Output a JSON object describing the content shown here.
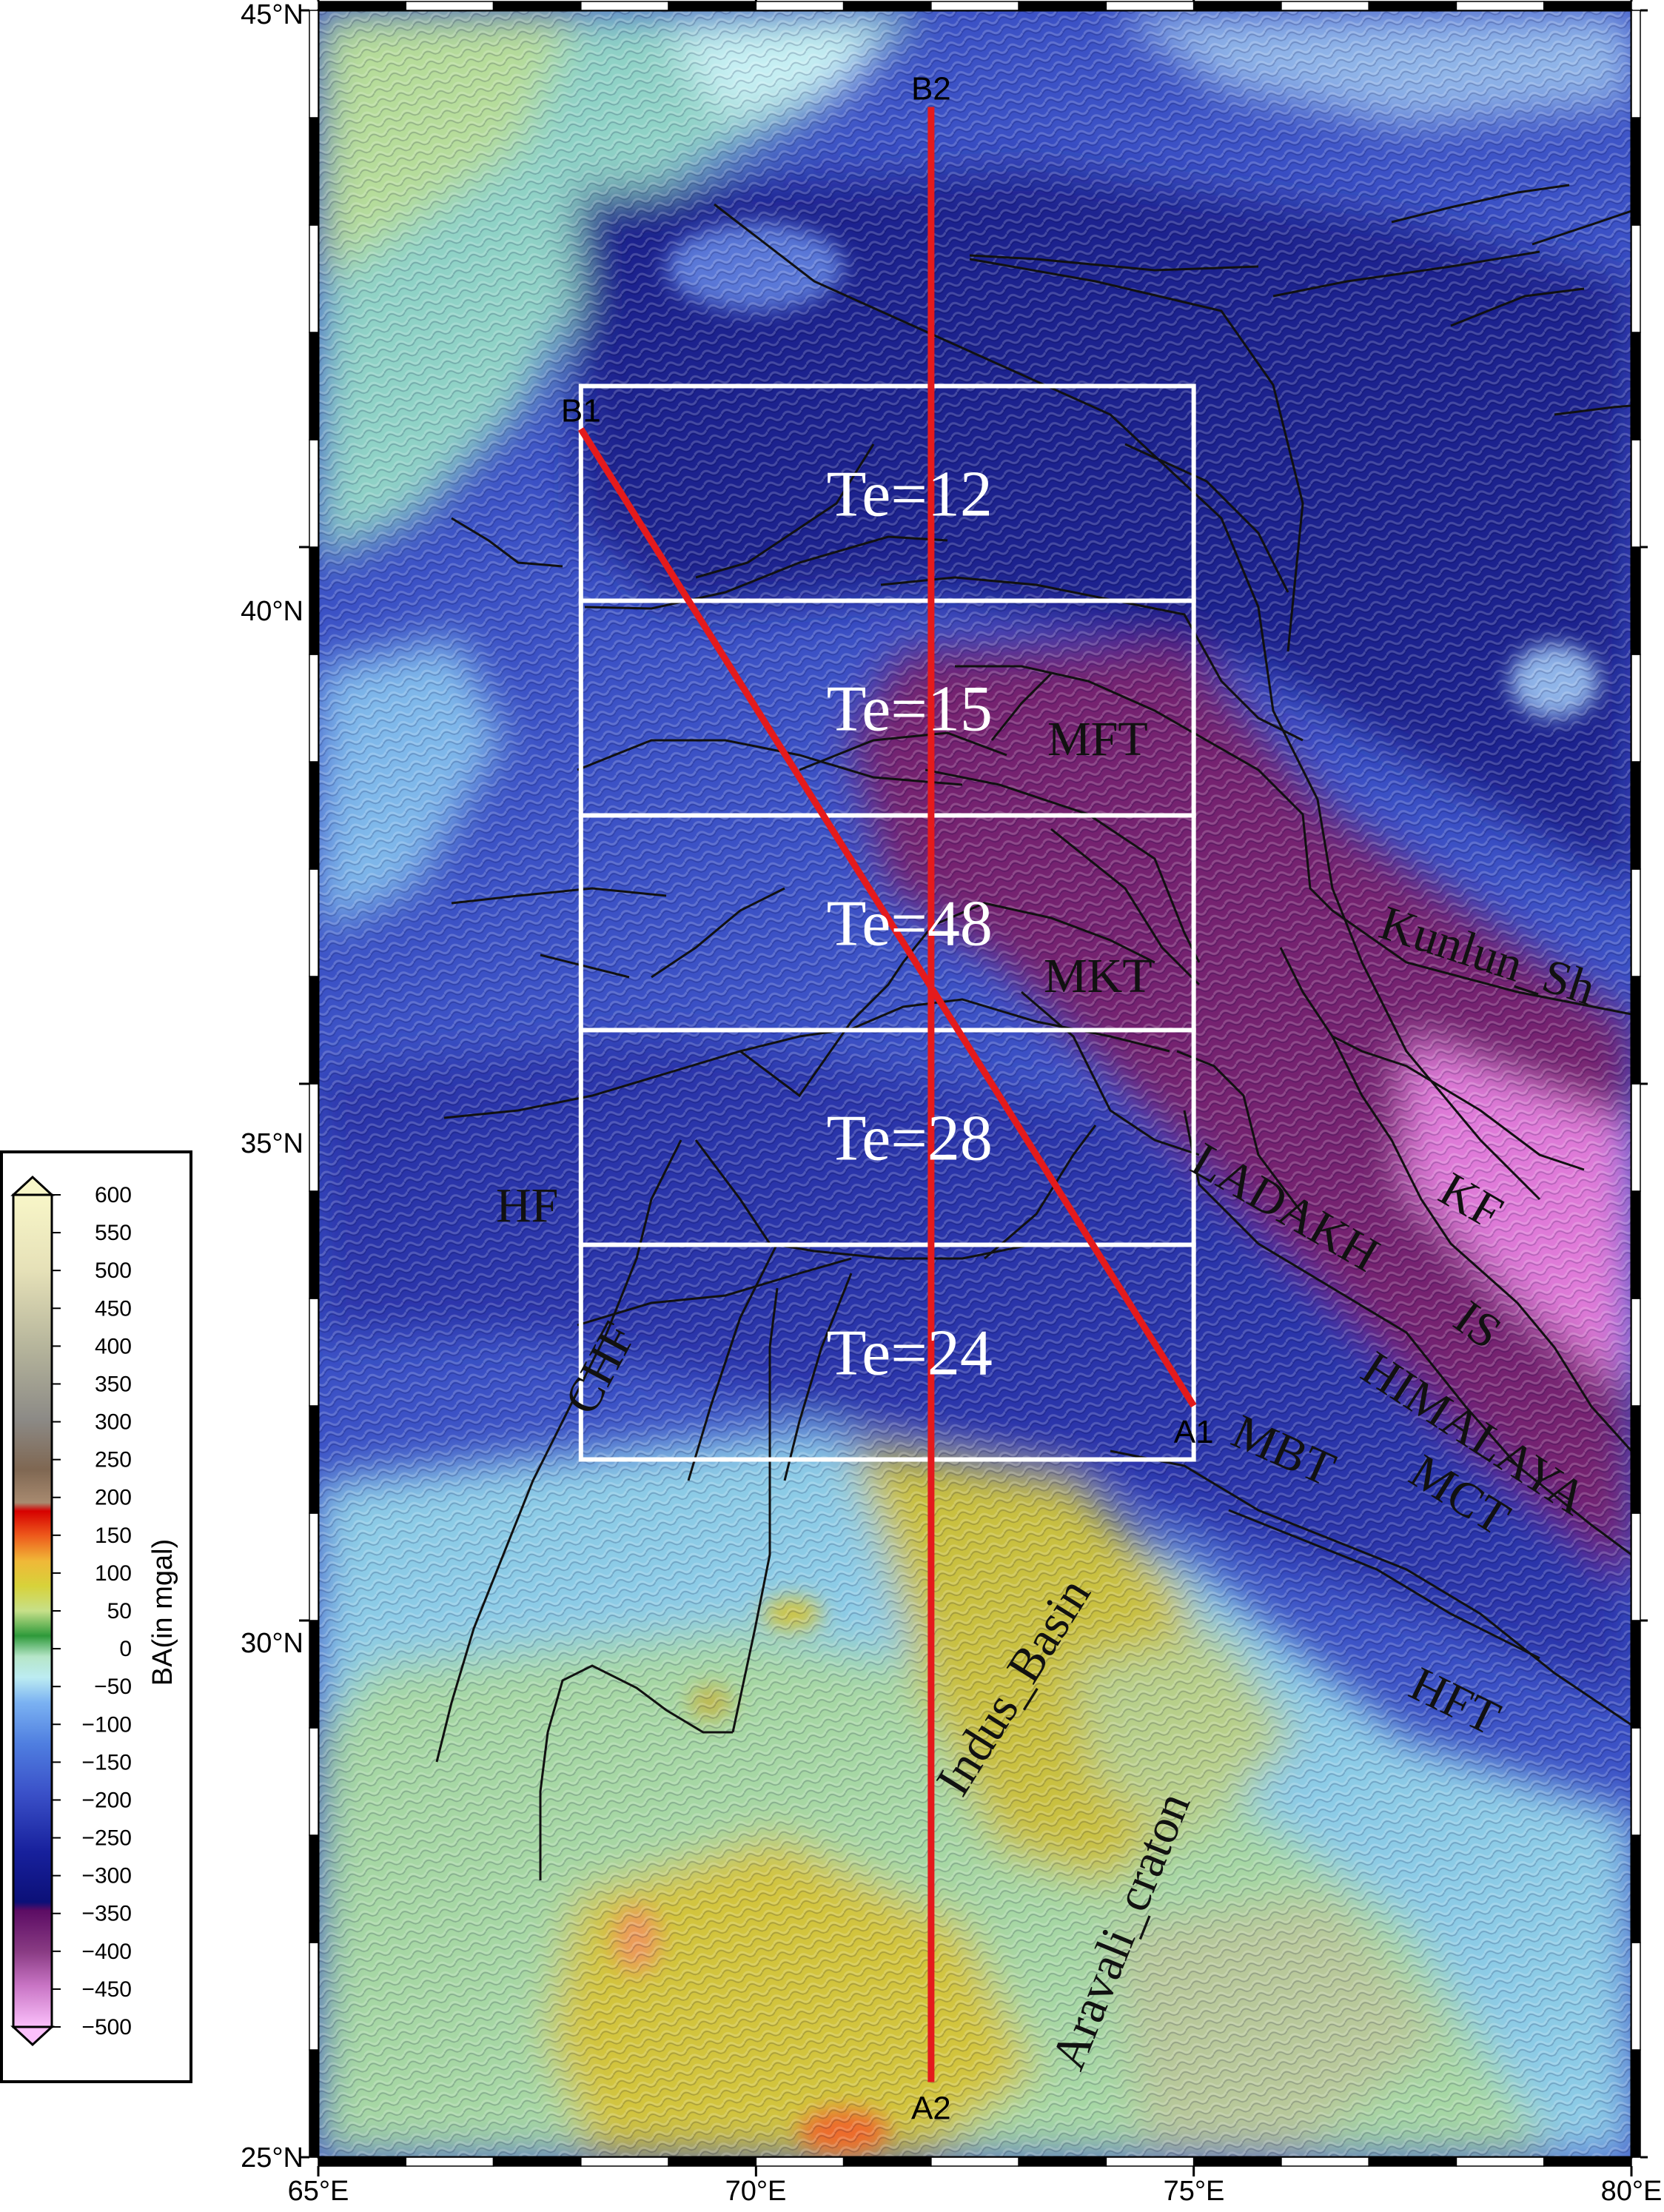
{
  "map": {
    "lon_range": [
      65,
      80
    ],
    "lat_range": [
      25,
      45
    ],
    "x_ticks": [
      "65°E",
      "70°E",
      "75°E",
      "80°E"
    ],
    "y_ticks": [
      "25°N",
      "30°N",
      "35°N",
      "40°N",
      "45°N"
    ],
    "profiles": [
      {
        "name": "profile-a2-b2",
        "start_label": "A2",
        "end_label": "B2",
        "start": [
          72.0,
          25.7
        ],
        "end": [
          72.0,
          44.1
        ],
        "color": "#e41a1c"
      },
      {
        "name": "profile-a1-b1",
        "start_label": "A1",
        "end_label": "B1",
        "start": [
          75.0,
          32.0
        ],
        "end": [
          68.0,
          41.1
        ],
        "color": "#e41a1c"
      }
    ],
    "te_labels": [
      "Te=12",
      "Te=15",
      "Te=48",
      "Te=28",
      "Te=24"
    ],
    "te_boxes": [
      {
        "lat_top": 41.5,
        "lat_bottom": 39.5
      },
      {
        "lat_top": 39.5,
        "lat_bottom": 37.5
      },
      {
        "lat_top": 37.5,
        "lat_bottom": 35.5
      },
      {
        "lat_top": 35.5,
        "lat_bottom": 33.5
      },
      {
        "lat_top": 33.5,
        "lat_bottom": 31.5
      }
    ],
    "box_lon_range": [
      68.0,
      75.0
    ],
    "fault_labels": {
      "mft": "MFT",
      "mkt": "MKT",
      "hf": "HF",
      "cht": "CHF",
      "ladakh": "LADAKH",
      "kf": "KF",
      "is": "IS",
      "himalaya": "HIMALAYA",
      "mbt": "MBT",
      "mct": "MCT",
      "kunlun": "Kunlun_Sh",
      "hft": "HFT",
      "indus": "Indus_Basin",
      "aravali": "Aravali_craton"
    }
  },
  "colorbar": {
    "label": "BA(in mgal)",
    "ticks": [
      "600",
      "550",
      "500",
      "450",
      "400",
      "350",
      "300",
      "250",
      "200",
      "150",
      "100",
      "50",
      "0",
      "−50",
      "−100",
      "−150",
      "−200",
      "−250",
      "−300",
      "−350",
      "−400",
      "−450",
      "−500"
    ],
    "range": [
      -500,
      600
    ]
  },
  "colors": {
    "deep_blue": "#24289a",
    "blue": "#3b50c8",
    "light_blue": "#6c9ce6",
    "cyan": "#a8e6ee",
    "green": "#9ed7a0",
    "yellow": "#cdc23a",
    "purple": "#7a2276",
    "magenta": "#e876dc",
    "fault": "#111111",
    "box": "#ffffff"
  }
}
